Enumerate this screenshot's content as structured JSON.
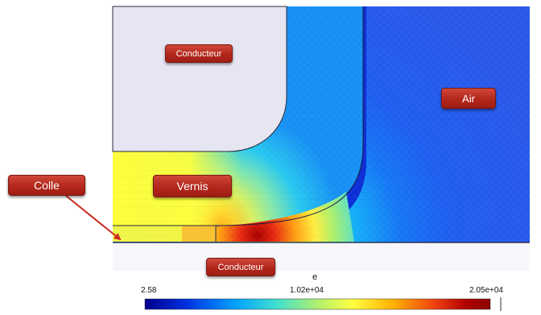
{
  "labels": {
    "conducteur_top": "Conducteur",
    "air": "Air",
    "vernis": "Vernis",
    "colle": "Colle",
    "conducteur_bottom": "Conducteur"
  },
  "legend": {
    "title": "e",
    "min_label": "2.58",
    "mid_label": "1.02e+04",
    "max_label": "2.05e+04",
    "colormap": [
      "#00008c",
      "#0030e0",
      "#00a0ff",
      "#40e0d0",
      "#b0f070",
      "#ffff40",
      "#ffb000",
      "#f04010",
      "#b00000",
      "#8c0000"
    ]
  },
  "colors": {
    "label_fill": "#b3271c",
    "vernis_yellow": "#ffff40",
    "conductor_gray": "#e6e6f2",
    "arrow_red": "#cc2a22"
  }
}
